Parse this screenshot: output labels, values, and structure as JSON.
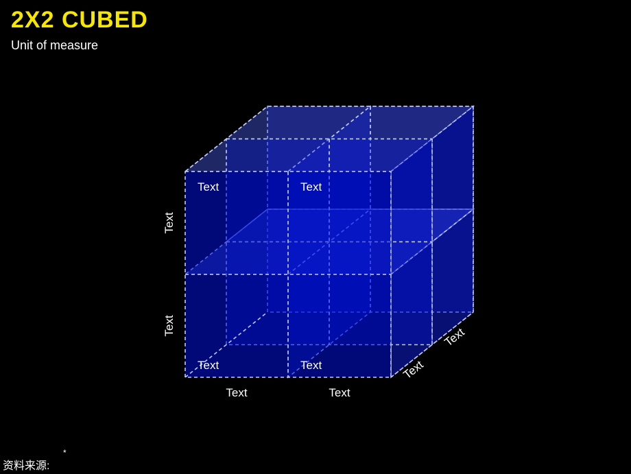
{
  "title": {
    "text": "2X2 CUBED",
    "color": "#f6e600",
    "font_size": 34,
    "font_weight": 800
  },
  "subtitle": {
    "text": "Unit of measure",
    "color": "#ffffff",
    "font_size": 18
  },
  "footnote_star": "*",
  "source_label": "资料来源:",
  "cube": {
    "type": "3d-cube-2x2x2",
    "background": "#000000",
    "stroke_color": "#bfcaff",
    "stroke_dash": "5,4",
    "stroke_width": 1.6,
    "front_fill": "#0010d8",
    "front_fill_opacity": 0.55,
    "side_fill": "#1020e8",
    "side_fill_opacity": 0.5,
    "top_fill": "#4a5df0",
    "top_fill_opacity": 0.42,
    "label_color": "#ffffff",
    "label_font_size": 17,
    "labels": {
      "left_axis_top": "Text",
      "left_axis_bottom": "Text",
      "front_top_left": "Text",
      "front_top_right": "Text",
      "front_bottom_left": "Text",
      "front_bottom_right": "Text",
      "bottom_axis_left": "Text",
      "bottom_axis_right": "Text",
      "depth_axis_near": "Text",
      "depth_axis_far": "Text"
    }
  }
}
